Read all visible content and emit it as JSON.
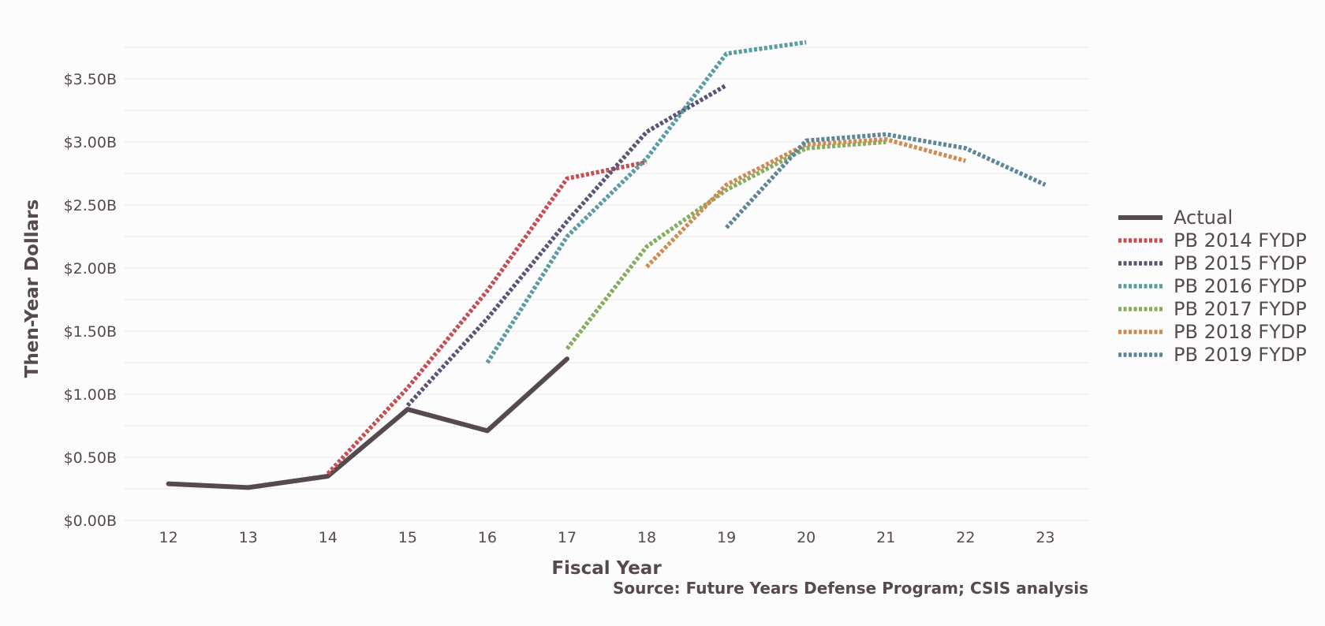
{
  "chart_data": {
    "type": "line",
    "title": "",
    "xlabel": "Fiscal Year",
    "ylabel": "Then-Year Dollars",
    "source": "Source: Future Years Defense Program; CSIS analysis",
    "x_ticks": [
      "12",
      "13",
      "14",
      "15",
      "16",
      "17",
      "18",
      "19",
      "20",
      "21",
      "22",
      "23"
    ],
    "y_ticks": [
      "$0.00B",
      "$0.50B",
      "$1.00B",
      "$1.50B",
      "$2.00B",
      "$2.50B",
      "$3.00B",
      "$3.50B"
    ],
    "xlim": [
      11.45,
      23.55
    ],
    "ylim": [
      -0.05,
      3.75
    ],
    "grid": true,
    "legend_position": "right",
    "series": [
      {
        "name": "Actual",
        "color": "#574a4f",
        "style": "solid",
        "x": [
          12,
          13,
          14,
          15,
          16,
          17
        ],
        "y": [
          0.29,
          0.26,
          0.35,
          0.88,
          0.71,
          1.28
        ]
      },
      {
        "name": "PB 2014 FYDP",
        "color": "#c44e52",
        "style": "dotted",
        "x": [
          14,
          15,
          16,
          17,
          18
        ],
        "y": [
          0.37,
          1.05,
          1.82,
          2.71,
          2.84
        ]
      },
      {
        "name": "PB 2015 FYDP",
        "color": "#5c5474",
        "style": "dotted",
        "x": [
          15,
          16,
          17,
          18,
          19
        ],
        "y": [
          0.91,
          1.6,
          2.37,
          3.08,
          3.45
        ]
      },
      {
        "name": "PB 2016 FYDP",
        "color": "#5a9ca0",
        "style": "dotted",
        "x": [
          16,
          17,
          18,
          19,
          20
        ],
        "y": [
          1.25,
          2.25,
          2.87,
          3.7,
          3.79
        ]
      },
      {
        "name": "PB 2017 FYDP",
        "color": "#86ad5e",
        "style": "dotted",
        "x": [
          17,
          18,
          19,
          20,
          21
        ],
        "y": [
          1.36,
          2.17,
          2.62,
          2.95,
          3.0
        ]
      },
      {
        "name": "PB 2018 FYDP",
        "color": "#cf8b52",
        "style": "dotted",
        "x": [
          18,
          19,
          20,
          21,
          22
        ],
        "y": [
          2.01,
          2.66,
          2.98,
          3.02,
          2.85
        ]
      },
      {
        "name": "PB 2019 FYDP",
        "color": "#5d8697",
        "style": "dotted",
        "x": [
          19,
          20,
          21,
          22,
          23
        ],
        "y": [
          2.32,
          3.01,
          3.06,
          2.95,
          2.66
        ]
      }
    ]
  }
}
